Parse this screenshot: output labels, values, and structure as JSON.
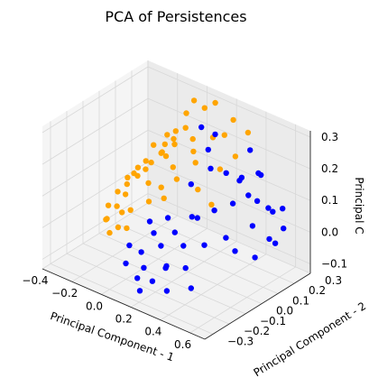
{
  "chart_data": {
    "type": "scatter",
    "projection": "3d",
    "title": "PCA of Persistences",
    "xlabel": "Principal Component - 1",
    "ylabel": "Principal Component - 2",
    "zlabel": "Principal C",
    "xlim": [
      -0.4,
      0.7
    ],
    "ylim": [
      -0.35,
      0.3
    ],
    "zlim": [
      -0.13,
      0.32
    ],
    "xticks": [
      "−0.4",
      "−0.2",
      "0.0",
      "0.2",
      "0.4",
      "0.6"
    ],
    "yticks": [
      "−0.3",
      "−0.2",
      "−0.1",
      "0.0",
      "0.1",
      "0.2",
      "0.3"
    ],
    "zticks": [
      "−0.1",
      "0.0",
      "0.1",
      "0.2",
      "0.3"
    ],
    "grid": true,
    "series": [
      {
        "color": "#ffa500",
        "points": [
          [
            -0.33,
            0.05,
            0.0
          ],
          [
            -0.3,
            0.08,
            0.02
          ],
          [
            -0.28,
            0.0,
            -0.02
          ],
          [
            -0.25,
            0.1,
            0.05
          ],
          [
            -0.22,
            0.05,
            0.08
          ],
          [
            -0.2,
            -0.02,
            0.04
          ],
          [
            -0.18,
            0.12,
            0.1
          ],
          [
            -0.15,
            0.06,
            0.13
          ],
          [
            -0.12,
            0.15,
            0.16
          ],
          [
            -0.1,
            0.03,
            0.08
          ],
          [
            -0.08,
            0.18,
            0.2
          ],
          [
            -0.05,
            0.1,
            0.22
          ],
          [
            -0.03,
            0.2,
            0.26
          ],
          [
            0.0,
            0.22,
            0.3
          ],
          [
            0.02,
            0.15,
            0.24
          ],
          [
            0.05,
            0.24,
            0.28
          ],
          [
            0.07,
            0.05,
            0.12
          ],
          [
            0.1,
            0.26,
            0.3
          ],
          [
            0.12,
            0.12,
            0.16
          ],
          [
            0.15,
            0.2,
            0.22
          ],
          [
            0.18,
            0.08,
            0.1
          ],
          [
            0.2,
            0.28,
            0.26
          ],
          [
            0.22,
            0.18,
            0.14
          ],
          [
            0.25,
            0.1,
            0.06
          ],
          [
            -0.3,
            -0.05,
            -0.05
          ],
          [
            -0.26,
            -0.08,
            -0.03
          ],
          [
            -0.22,
            -0.1,
            -0.06
          ],
          [
            -0.18,
            -0.06,
            0.0
          ],
          [
            -0.14,
            -0.12,
            -0.02
          ],
          [
            -0.1,
            -0.08,
            0.03
          ],
          [
            -0.06,
            -0.14,
            0.0
          ],
          [
            -0.02,
            -0.04,
            0.06
          ],
          [
            0.02,
            0.0,
            0.1
          ],
          [
            0.06,
            -0.02,
            0.08
          ],
          [
            -0.16,
            0.02,
            0.12
          ],
          [
            -0.12,
            0.08,
            0.18
          ],
          [
            -0.08,
            0.12,
            0.14
          ],
          [
            -0.04,
            0.06,
            0.18
          ],
          [
            0.0,
            0.1,
            0.2
          ],
          [
            0.04,
            0.18,
            0.16
          ],
          [
            0.08,
            0.14,
            0.22
          ],
          [
            -0.24,
            0.14,
            0.06
          ],
          [
            -0.2,
            0.2,
            0.1
          ],
          [
            -0.16,
            0.24,
            0.14
          ],
          [
            -0.34,
            0.12,
            0.02
          ],
          [
            -0.36,
            0.02,
            -0.04
          ],
          [
            0.28,
            0.22,
            0.18
          ],
          [
            0.3,
            0.28,
            0.24
          ],
          [
            0.14,
            0.28,
            0.2
          ],
          [
            0.1,
            0.0,
            0.18
          ]
        ]
      },
      {
        "color": "#0000ff",
        "points": [
          [
            0.05,
            -0.15,
            -0.05
          ],
          [
            0.08,
            -0.1,
            0.0
          ],
          [
            0.1,
            -0.18,
            -0.08
          ],
          [
            0.12,
            -0.05,
            0.04
          ],
          [
            0.15,
            -0.12,
            -0.02
          ],
          [
            0.18,
            -0.2,
            -0.1
          ],
          [
            0.2,
            -0.08,
            0.02
          ],
          [
            0.22,
            -0.15,
            -0.06
          ],
          [
            0.25,
            -0.02,
            0.06
          ],
          [
            0.28,
            -0.1,
            0.0
          ],
          [
            0.3,
            -0.22,
            -0.1
          ],
          [
            0.32,
            -0.05,
            0.08
          ],
          [
            0.35,
            -0.15,
            -0.04
          ],
          [
            0.38,
            0.0,
            0.1
          ],
          [
            0.4,
            -0.08,
            0.02
          ],
          [
            0.42,
            -0.18,
            -0.08
          ],
          [
            0.45,
            0.05,
            0.12
          ],
          [
            0.48,
            -0.02,
            0.04
          ],
          [
            0.5,
            0.1,
            0.14
          ],
          [
            0.52,
            0.0,
            0.0
          ],
          [
            0.55,
            0.08,
            0.06
          ],
          [
            0.58,
            0.15,
            0.1
          ],
          [
            0.6,
            0.05,
            -0.02
          ],
          [
            0.62,
            0.12,
            0.02
          ],
          [
            0.65,
            0.18,
            0.04
          ],
          [
            0.35,
            0.1,
            0.18
          ],
          [
            0.3,
            0.05,
            0.2
          ],
          [
            0.25,
            0.08,
            0.24
          ],
          [
            0.2,
            0.02,
            0.14
          ],
          [
            0.4,
            0.15,
            0.16
          ],
          [
            0.45,
            0.2,
            0.08
          ],
          [
            0.5,
            0.25,
            0.04
          ],
          [
            0.55,
            0.22,
            -0.04
          ],
          [
            0.1,
            -0.22,
            -0.1
          ],
          [
            0.15,
            -0.25,
            -0.12
          ],
          [
            0.0,
            -0.2,
            -0.08
          ],
          [
            -0.02,
            -0.16,
            -0.04
          ],
          [
            0.03,
            -0.08,
            0.02
          ],
          [
            0.27,
            -0.2,
            -0.04
          ],
          [
            0.33,
            0.2,
            0.12
          ],
          [
            0.42,
            0.25,
            0.14
          ],
          [
            0.48,
            0.18,
            0.18
          ],
          [
            0.6,
            0.22,
            0.08
          ],
          [
            0.38,
            0.22,
            0.22
          ],
          [
            0.22,
            0.15,
            0.26
          ],
          [
            0.16,
            0.12,
            0.28
          ]
        ]
      }
    ]
  }
}
